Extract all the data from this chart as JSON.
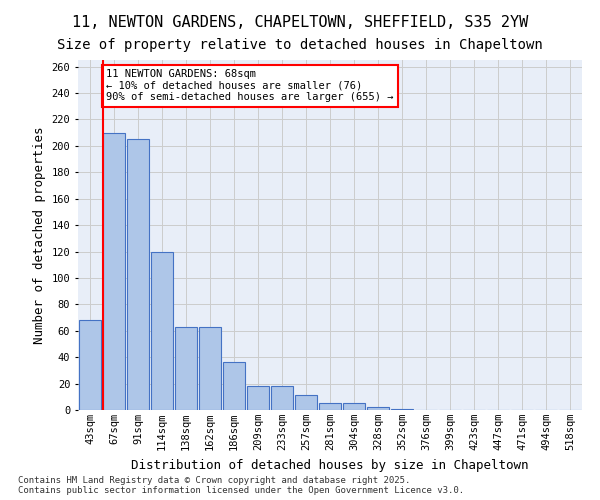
{
  "title1": "11, NEWTON GARDENS, CHAPELTOWN, SHEFFIELD, S35 2YW",
  "title2": "Size of property relative to detached houses in Chapeltown",
  "xlabel": "Distribution of detached houses by size in Chapeltown",
  "ylabel": "Number of detached properties",
  "bin_labels": [
    "43sqm",
    "67sqm",
    "91sqm",
    "114sqm",
    "138sqm",
    "162sqm",
    "186sqm",
    "209sqm",
    "233sqm",
    "257sqm",
    "281sqm",
    "304sqm",
    "328sqm",
    "352sqm",
    "376sqm",
    "399sqm",
    "423sqm",
    "447sqm",
    "471sqm",
    "494sqm",
    "518sqm"
  ],
  "bar_values": [
    68,
    210,
    205,
    120,
    63,
    63,
    36,
    18,
    18,
    11,
    5,
    5,
    2,
    1,
    0,
    0,
    0,
    0,
    0,
    0,
    0
  ],
  "bar_color": "#aec6e8",
  "bar_edge_color": "#4472c4",
  "annotation_text": "11 NEWTON GARDENS: 68sqm\n← 10% of detached houses are smaller (76)\n90% of semi-detached houses are larger (655) →",
  "annotation_box_color": "white",
  "annotation_edge_color": "red",
  "vline_color": "red",
  "grid_color": "#cccccc",
  "background_color": "#e8eef8",
  "footer_text": "Contains HM Land Registry data © Crown copyright and database right 2025.\nContains public sector information licensed under the Open Government Licence v3.0.",
  "ylim": [
    0,
    265
  ],
  "title1_fontsize": 11,
  "title2_fontsize": 10,
  "xlabel_fontsize": 9,
  "ylabel_fontsize": 9,
  "tick_fontsize": 7.5
}
